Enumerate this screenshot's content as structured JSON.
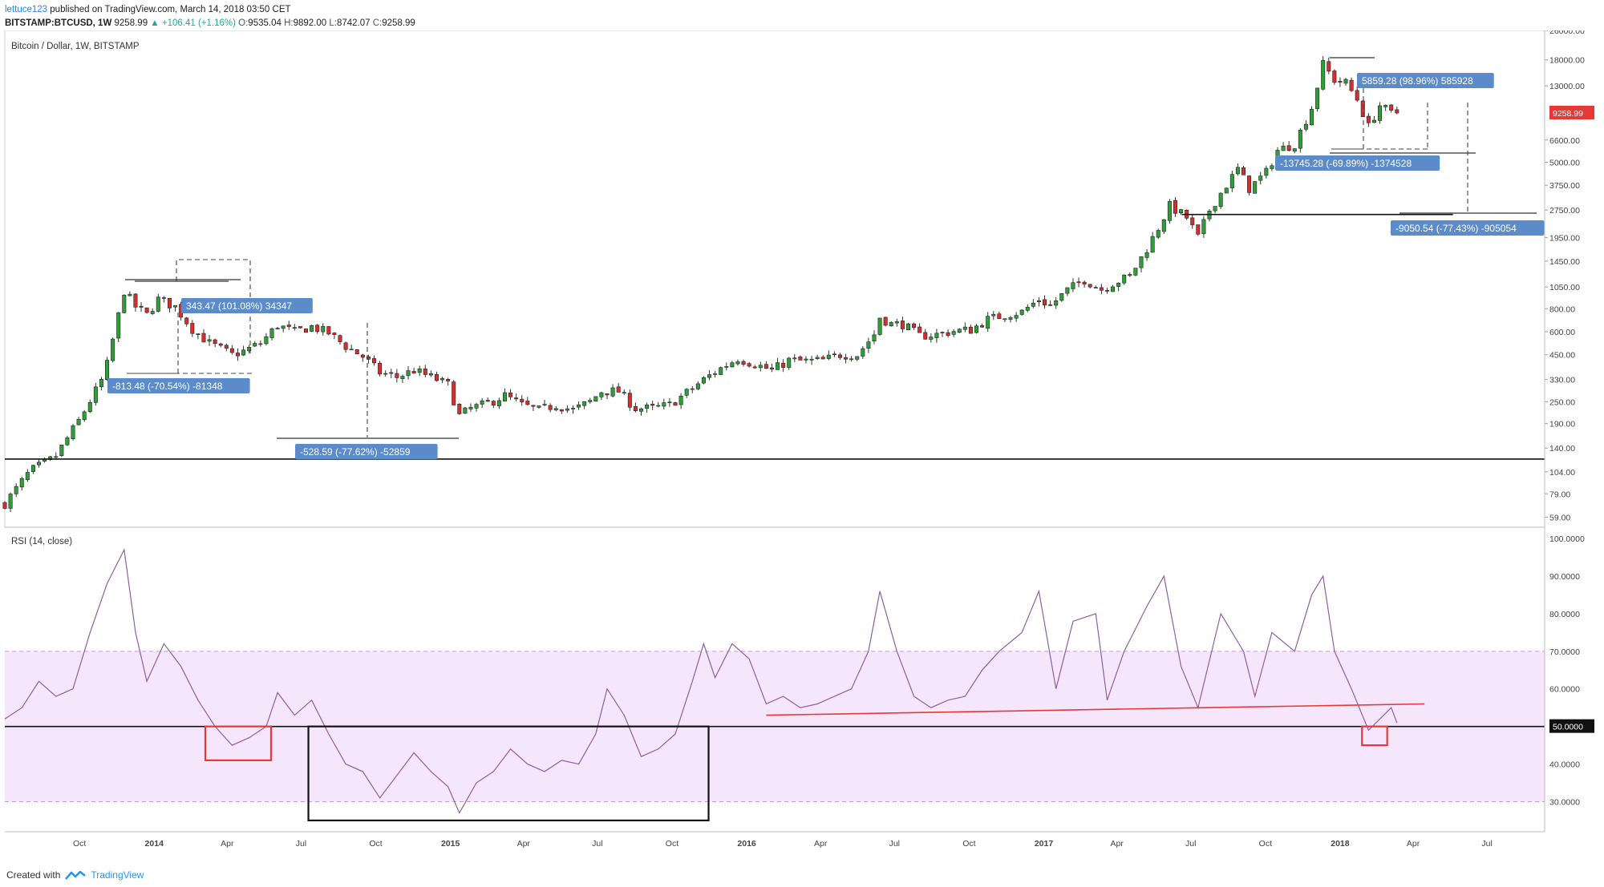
{
  "header": {
    "author": "lettuce123",
    "published": "published on TradingView.com, March 14, 2018 03:50 CET",
    "symbol": "BITSTAMP:BTCUSD, 1W",
    "last": "9258.99",
    "change": "▲ +106.41 (+1.16%)",
    "open_label": "O:",
    "open": "9535.04",
    "high_label": "H:",
    "high": "9892.00",
    "low_label": "L:",
    "low": "8742.07",
    "close_label": "C:",
    "close": "9258.99"
  },
  "footer": {
    "created_with": "Created with",
    "brand": "TradingView",
    "brand_icon": "tradingview-logo-icon"
  },
  "colors": {
    "up": "#2e9e37",
    "down": "#d32f2f",
    "rsi_line": "#8e5ea2",
    "rsi_band": "#f5e6fb",
    "anno_bg": "#5b8cc9",
    "price_tag": "#e53935",
    "trendline": "#e53935"
  },
  "chart_data": [
    {
      "type": "candlestick",
      "title": "Bitcoin / Dollar, 1W, BITSTAMP",
      "y_scale": "log",
      "ylim": [
        52,
        26000
      ],
      "y_ticks": [
        "26000.00",
        "18000.00",
        "13000.00",
        "9258.99",
        "6600.00",
        "5000.00",
        "3750.00",
        "2750.00",
        "1950.00",
        "1450.00",
        "1050.00",
        "800.00",
        "600.00",
        "450.00",
        "330.00",
        "250.00",
        "190.00",
        "140.00",
        "104.00",
        "79.00",
        "59.00"
      ],
      "last_price": 9258.99,
      "x_ticks": [
        "Oct",
        "2014",
        "Apr",
        "Jul",
        "Oct",
        "2015",
        "Apr",
        "Jul",
        "Oct",
        "2016",
        "Apr",
        "Jul",
        "Oct",
        "2017",
        "Apr",
        "Jul",
        "Oct",
        "2018",
        "Apr",
        "Jul"
      ],
      "x_tick_dates": [
        "2013-10-01",
        "2014-01-01",
        "2014-04-01",
        "2014-07-01",
        "2014-10-01",
        "2015-01-01",
        "2015-04-01",
        "2015-07-01",
        "2015-10-01",
        "2016-01-01",
        "2016-04-01",
        "2016-07-01",
        "2016-10-01",
        "2017-01-01",
        "2017-04-01",
        "2017-07-01",
        "2017-10-01",
        "2018-01-01",
        "2018-04-01",
        "2018-07-01"
      ],
      "xlim": [
        "2013-07-01",
        "2018-09-10"
      ],
      "close_path": [
        [
          "2013-07-01",
          70
        ],
        [
          "2013-08-01",
          105
        ],
        [
          "2013-09-01",
          125
        ],
        [
          "2013-10-01",
          200
        ],
        [
          "2013-11-01",
          350
        ],
        [
          "2013-11-25",
          1000
        ],
        [
          "2013-12-09",
          820
        ],
        [
          "2013-12-23",
          740
        ],
        [
          "2014-01-06",
          900
        ],
        [
          "2014-01-27",
          820
        ],
        [
          "2014-02-17",
          620
        ],
        [
          "2014-03-10",
          520
        ],
        [
          "2014-04-07",
          450
        ],
        [
          "2014-04-21",
          470
        ],
        [
          "2014-05-12",
          520
        ],
        [
          "2014-06-02",
          650
        ],
        [
          "2014-06-23",
          600
        ],
        [
          "2014-07-14",
          640
        ],
        [
          "2014-08-04",
          590
        ],
        [
          "2014-08-25",
          500
        ],
        [
          "2014-09-15",
          440
        ],
        [
          "2014-10-06",
          360
        ],
        [
          "2014-10-27",
          340
        ],
        [
          "2014-11-17",
          370
        ],
        [
          "2014-12-08",
          340
        ],
        [
          "2014-12-29",
          310
        ],
        [
          "2015-01-12",
          210
        ],
        [
          "2015-01-26",
          230
        ],
        [
          "2015-02-16",
          245
        ],
        [
          "2015-03-09",
          270
        ],
        [
          "2015-03-30",
          240
        ],
        [
          "2015-04-20",
          225
        ],
        [
          "2015-05-11",
          240
        ],
        [
          "2015-06-01",
          225
        ],
        [
          "2015-06-22",
          250
        ],
        [
          "2015-07-06",
          285
        ],
        [
          "2015-07-27",
          285
        ],
        [
          "2015-08-17",
          230
        ],
        [
          "2015-09-07",
          230
        ],
        [
          "2015-09-28",
          240
        ],
        [
          "2015-10-19",
          280
        ],
        [
          "2015-11-09",
          330
        ],
        [
          "2015-11-30",
          380
        ],
        [
          "2015-12-21",
          430
        ],
        [
          "2016-01-11",
          400
        ],
        [
          "2016-02-01",
          370
        ],
        [
          "2016-02-22",
          420
        ],
        [
          "2016-03-14",
          415
        ],
        [
          "2016-04-04",
          420
        ],
        [
          "2016-04-25",
          450
        ],
        [
          "2016-05-16",
          450
        ],
        [
          "2016-06-06",
          580
        ],
        [
          "2016-06-13",
          720
        ],
        [
          "2016-06-27",
          660
        ],
        [
          "2016-07-11",
          660
        ],
        [
          "2016-08-01",
          570
        ],
        [
          "2016-08-22",
          580
        ],
        [
          "2016-09-12",
          605
        ],
        [
          "2016-10-03",
          615
        ],
        [
          "2016-10-24",
          700
        ],
        [
          "2016-11-14",
          740
        ],
        [
          "2016-12-05",
          770
        ],
        [
          "2016-12-26",
          900
        ],
        [
          "2017-01-09",
          830
        ],
        [
          "2017-01-30",
          1010
        ],
        [
          "2017-02-20",
          1150
        ],
        [
          "2017-03-13",
          1020
        ],
        [
          "2017-03-27",
          1100
        ],
        [
          "2017-04-17",
          1200
        ],
        [
          "2017-05-08",
          1700
        ],
        [
          "2017-05-22",
          2200
        ],
        [
          "2017-06-05",
          2900
        ],
        [
          "2017-06-26",
          2500
        ],
        [
          "2017-07-10",
          1950
        ],
        [
          "2017-07-24",
          2750
        ],
        [
          "2017-08-07",
          3400
        ],
        [
          "2017-08-28",
          4600
        ],
        [
          "2017-09-11",
          3600
        ],
        [
          "2017-10-02",
          4400
        ],
        [
          "2017-10-16",
          5800
        ],
        [
          "2017-11-06",
          6300
        ],
        [
          "2017-11-27",
          9900
        ],
        [
          "2017-12-11",
          17000
        ],
        [
          "2017-12-25",
          14000
        ],
        [
          "2018-01-08",
          13500
        ],
        [
          "2018-01-22",
          11000
        ],
        [
          "2018-02-05",
          7800
        ],
        [
          "2018-02-19",
          10200
        ],
        [
          "2018-03-05",
          9200
        ],
        [
          "2018-03-12",
          9258.99
        ]
      ],
      "horizontal_lines": [
        {
          "price": 122,
          "start": "2013-07-01",
          "end": "2018-09-10",
          "style": "solid"
        },
        {
          "price": 2600,
          "start": "2017-06-20",
          "end": "2018-05-20",
          "style": "solid"
        }
      ],
      "annotations": [
        {
          "text": "343.47 (101.08%) 34347"
        },
        {
          "text": "-813.48 (-70.54%) -81348"
        },
        {
          "text": "-528.59 (-77.62%) -52859"
        },
        {
          "text": "5859.28 (98.96%) 585928"
        },
        {
          "text": "-13745.28 (-69.89%) -1374528"
        },
        {
          "text": "-9050.54 (-77.43%) -905054"
        }
      ]
    },
    {
      "type": "line",
      "title": "RSI (14, close)",
      "ylim": [
        22,
        103
      ],
      "y_ticks": [
        "100.0000",
        "90.0000",
        "80.0000",
        "70.0000",
        "60.0000",
        "50.0000",
        "40.0000",
        "30.0000"
      ],
      "band": [
        30,
        70
      ],
      "midline": 50,
      "values": [
        [
          "2013-07-01",
          52
        ],
        [
          "2013-07-22",
          55
        ],
        [
          "2013-08-12",
          62
        ],
        [
          "2013-09-02",
          58
        ],
        [
          "2013-09-23",
          60
        ],
        [
          "2013-10-14",
          75
        ],
        [
          "2013-11-04",
          88
        ],
        [
          "2013-11-25",
          97
        ],
        [
          "2013-12-09",
          75
        ],
        [
          "2013-12-23",
          62
        ],
        [
          "2014-01-13",
          72
        ],
        [
          "2014-02-03",
          66
        ],
        [
          "2014-02-24",
          57
        ],
        [
          "2014-03-17",
          50
        ],
        [
          "2014-04-07",
          45
        ],
        [
          "2014-04-28",
          47
        ],
        [
          "2014-05-19",
          50
        ],
        [
          "2014-06-02",
          59
        ],
        [
          "2014-06-23",
          53
        ],
        [
          "2014-07-14",
          57
        ],
        [
          "2014-08-04",
          48
        ],
        [
          "2014-08-25",
          40
        ],
        [
          "2014-09-15",
          38
        ],
        [
          "2014-10-06",
          31
        ],
        [
          "2014-10-27",
          37
        ],
        [
          "2014-11-17",
          43
        ],
        [
          "2014-12-08",
          38
        ],
        [
          "2014-12-29",
          34
        ],
        [
          "2015-01-12",
          27
        ],
        [
          "2015-02-02",
          35
        ],
        [
          "2015-02-23",
          38
        ],
        [
          "2015-03-16",
          44
        ],
        [
          "2015-04-06",
          40
        ],
        [
          "2015-04-27",
          38
        ],
        [
          "2015-05-18",
          41
        ],
        [
          "2015-06-08",
          40
        ],
        [
          "2015-06-29",
          48
        ],
        [
          "2015-07-13",
          60
        ],
        [
          "2015-08-03",
          53
        ],
        [
          "2015-08-24",
          42
        ],
        [
          "2015-09-14",
          44
        ],
        [
          "2015-10-05",
          48
        ],
        [
          "2015-10-26",
          62
        ],
        [
          "2015-11-09",
          72
        ],
        [
          "2015-11-23",
          63
        ],
        [
          "2015-12-14",
          72
        ],
        [
          "2016-01-04",
          68
        ],
        [
          "2016-01-25",
          56
        ],
        [
          "2016-02-15",
          58
        ],
        [
          "2016-03-07",
          55
        ],
        [
          "2016-03-28",
          56
        ],
        [
          "2016-04-18",
          58
        ],
        [
          "2016-05-09",
          60
        ],
        [
          "2016-05-30",
          70
        ],
        [
          "2016-06-13",
          86
        ],
        [
          "2016-07-04",
          70
        ],
        [
          "2016-07-25",
          58
        ],
        [
          "2016-08-15",
          55
        ],
        [
          "2016-09-05",
          57
        ],
        [
          "2016-09-26",
          58
        ],
        [
          "2016-10-17",
          65
        ],
        [
          "2016-11-07",
          70
        ],
        [
          "2016-12-05",
          75
        ],
        [
          "2016-12-26",
          86
        ],
        [
          "2017-01-16",
          60
        ],
        [
          "2017-02-06",
          78
        ],
        [
          "2017-03-06",
          80
        ],
        [
          "2017-03-20",
          57
        ],
        [
          "2017-04-10",
          70
        ],
        [
          "2017-05-08",
          82
        ],
        [
          "2017-05-29",
          90
        ],
        [
          "2017-06-19",
          66
        ],
        [
          "2017-07-10",
          55
        ],
        [
          "2017-08-07",
          80
        ],
        [
          "2017-09-04",
          70
        ],
        [
          "2017-09-18",
          58
        ],
        [
          "2017-10-09",
          75
        ],
        [
          "2017-11-06",
          70
        ],
        [
          "2017-11-27",
          85
        ],
        [
          "2017-12-11",
          90
        ],
        [
          "2017-12-25",
          70
        ],
        [
          "2018-01-15",
          60
        ],
        [
          "2018-02-05",
          49
        ],
        [
          "2018-02-19",
          52
        ],
        [
          "2018-03-05",
          55
        ],
        [
          "2018-03-12",
          51
        ]
      ],
      "trendline": {
        "start": [
          "2016-01-25",
          53
        ],
        "end": [
          "2018-04-15",
          56
        ]
      },
      "boxes": [
        {
          "start": "2014-03-05",
          "end": "2014-05-25",
          "top": 50,
          "bottom": 41,
          "color": "#e53935"
        },
        {
          "start": "2014-07-10",
          "end": "2015-11-15",
          "top": 50,
          "bottom": 25,
          "color": "#111111"
        },
        {
          "start": "2018-01-28",
          "end": "2018-02-28",
          "top": 50,
          "bottom": 45,
          "color": "#e53935"
        }
      ]
    }
  ]
}
